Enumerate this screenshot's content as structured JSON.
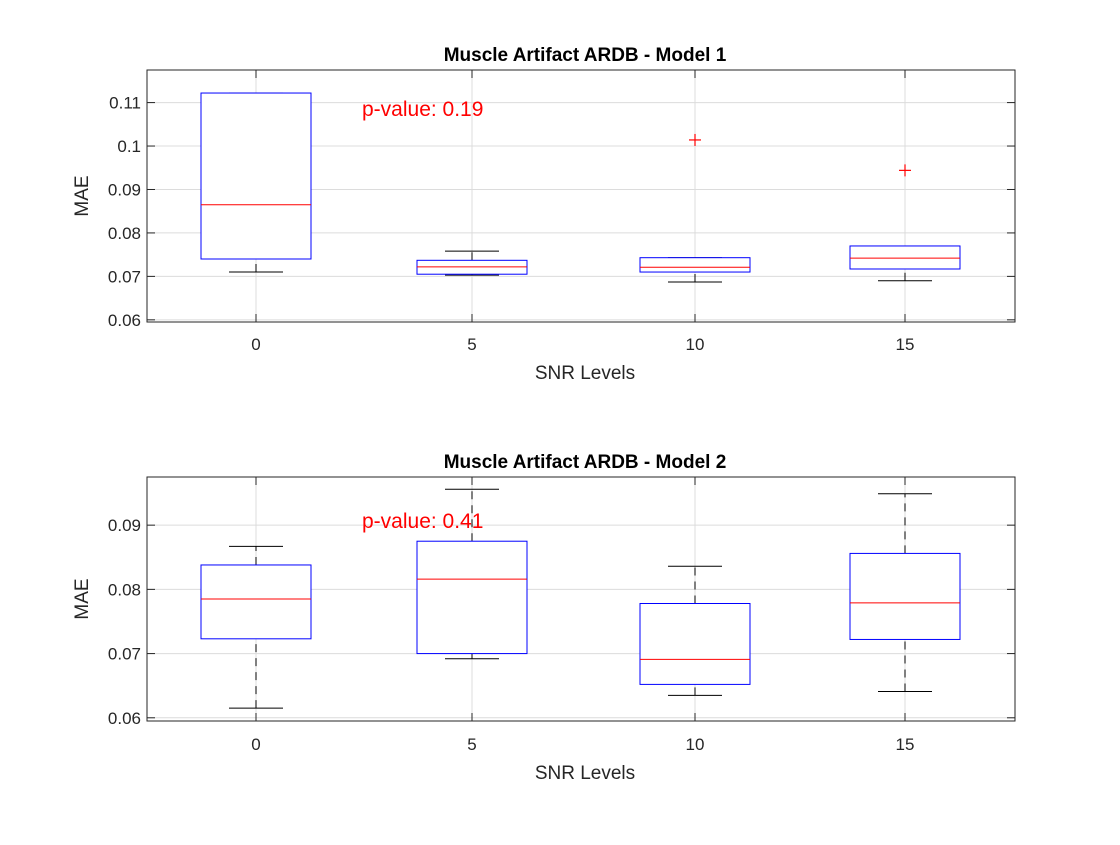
{
  "chart_data": [
    {
      "type": "boxplot",
      "title": "Muscle Artifact ARDB - Model 1",
      "xlabel": "SNR Levels",
      "ylabel": "MAE",
      "categories": [
        "0",
        "5",
        "10",
        "15"
      ],
      "ylim": [
        0.0595,
        0.1175
      ],
      "yticks": [
        0.06,
        0.07,
        0.08,
        0.09,
        0.1,
        0.11
      ],
      "ytick_labels": [
        "0.06",
        "0.07",
        "0.08",
        "0.09",
        "0.1",
        "0.11"
      ],
      "grid": true,
      "annotation": "p-value: 0.19",
      "boxes": [
        {
          "category": "0",
          "whisker_low": 0.071,
          "q1": 0.074,
          "median": 0.0865,
          "q3": 0.1122,
          "whisker_high": 0.1122,
          "outliers": []
        },
        {
          "category": "5",
          "whisker_low": 0.0703,
          "q1": 0.0705,
          "median": 0.0722,
          "q3": 0.0737,
          "whisker_high": 0.0758,
          "outliers": []
        },
        {
          "category": "10",
          "whisker_low": 0.0687,
          "q1": 0.071,
          "median": 0.0721,
          "q3": 0.0743,
          "whisker_high": 0.0743,
          "outliers": [
            0.1014
          ]
        },
        {
          "category": "15",
          "whisker_low": 0.069,
          "q1": 0.0717,
          "median": 0.0742,
          "q3": 0.077,
          "whisker_high": 0.077,
          "outliers": [
            0.0944
          ]
        }
      ]
    },
    {
      "type": "boxplot",
      "title": "Muscle Artifact ARDB - Model 2",
      "xlabel": "SNR Levels",
      "ylabel": "MAE",
      "categories": [
        "0",
        "5",
        "10",
        "15"
      ],
      "ylim": [
        0.0595,
        0.0975
      ],
      "yticks": [
        0.06,
        0.07,
        0.08,
        0.09
      ],
      "ytick_labels": [
        "0.06",
        "0.07",
        "0.08",
        "0.09"
      ],
      "grid": true,
      "annotation": "p-value: 0.41",
      "boxes": [
        {
          "category": "0",
          "whisker_low": 0.0615,
          "q1": 0.0723,
          "median": 0.0785,
          "q3": 0.0838,
          "whisker_high": 0.0867,
          "outliers": []
        },
        {
          "category": "5",
          "whisker_low": 0.0692,
          "q1": 0.07,
          "median": 0.0816,
          "q3": 0.0875,
          "whisker_high": 0.0956,
          "outliers": []
        },
        {
          "category": "10",
          "whisker_low": 0.0635,
          "q1": 0.0652,
          "median": 0.0691,
          "q3": 0.0778,
          "whisker_high": 0.0836,
          "outliers": []
        },
        {
          "category": "15",
          "whisker_low": 0.0641,
          "q1": 0.0722,
          "median": 0.0779,
          "q3": 0.0856,
          "whisker_high": 0.0949,
          "outliers": []
        }
      ]
    }
  ],
  "colors": {
    "box": "#0000ff",
    "median": "#ff0000",
    "whisker": "#000000",
    "outlier": "#ff0000",
    "grid": "#dcdcdc",
    "axes": "#262626",
    "annotation": "#ff0000"
  }
}
